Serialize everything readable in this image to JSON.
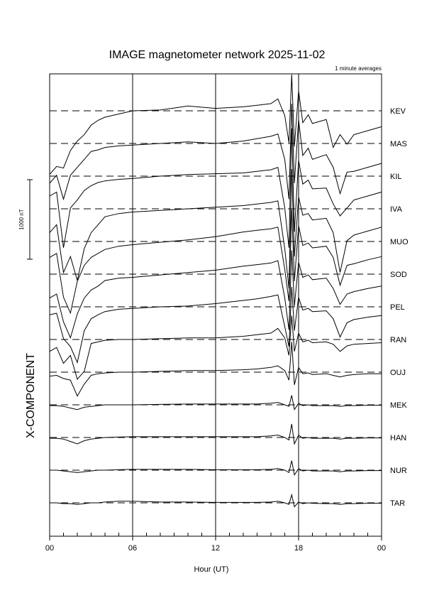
{
  "chart_data": {
    "type": "line",
    "title": "IMAGE magnetometer network 2025-11-02",
    "subtitle": "1 minute averages",
    "xlabel": "Hour (UT)",
    "component_label": "X-COMPONENT",
    "scale_bar_label": "1000 nT",
    "scale_bar_nT": 1000,
    "xlim": [
      0,
      24
    ],
    "x_ticks": [
      {
        "hour": 0,
        "label": "00"
      },
      {
        "hour": 6,
        "label": "06"
      },
      {
        "hour": 12,
        "label": "12"
      },
      {
        "hour": 18,
        "label": "18"
      },
      {
        "hour": 24,
        "label": "00"
      }
    ],
    "minor_tick_hours": [
      1,
      2,
      3,
      4,
      5,
      7,
      8,
      9,
      10,
      11,
      13,
      14,
      15,
      16,
      17,
      19,
      20,
      21,
      22,
      23
    ],
    "grid": {
      "vertical_hours": [
        6,
        12,
        18
      ],
      "baselines": "dashed"
    },
    "sample_hours": [
      0,
      0.5,
      1,
      1.5,
      2,
      2.5,
      3,
      3.5,
      4,
      5,
      6,
      8,
      10,
      12,
      14,
      15,
      16,
      16.5,
      17,
      17.3,
      17.5,
      17.7,
      18,
      18.3,
      18.7,
      19,
      20,
      20.5,
      21,
      21.5,
      22,
      23,
      24
    ],
    "series": [
      {
        "name": "KEV",
        "values": [
          -800,
          -700,
          -720,
          -500,
          -380,
          -300,
          -180,
          -120,
          -80,
          -40,
          0,
          10,
          60,
          30,
          50,
          70,
          90,
          150,
          -60,
          -400,
          700,
          -450,
          250,
          -150,
          -50,
          -160,
          -110,
          -460,
          -300,
          -420,
          -300,
          -250,
          -200
        ]
      },
      {
        "name": "MAS",
        "values": [
          -500,
          -400,
          -700,
          -400,
          -300,
          -200,
          -100,
          -80,
          -50,
          -30,
          -20,
          0,
          20,
          0,
          30,
          60,
          90,
          120,
          -200,
          -700,
          500,
          -500,
          300,
          -150,
          -60,
          -200,
          -140,
          -300,
          -630,
          -360,
          -350,
          -300,
          -250
        ]
      },
      {
        "name": "KIL",
        "values": [
          -250,
          -200,
          -900,
          -400,
          -300,
          -180,
          -120,
          -80,
          -60,
          -40,
          -30,
          0,
          20,
          30,
          40,
          60,
          80,
          110,
          -400,
          -900,
          600,
          -700,
          200,
          -100,
          -50,
          -160,
          -150,
          -350,
          -500,
          -400,
          -300,
          -250,
          -200
        ]
      },
      {
        "name": "IVA",
        "values": [
          -300,
          -200,
          -800,
          -600,
          -900,
          -500,
          -300,
          -200,
          -100,
          -60,
          -40,
          -20,
          0,
          20,
          40,
          60,
          80,
          100,
          -500,
          -1000,
          500,
          -600,
          150,
          -80,
          -60,
          -140,
          -120,
          -300,
          -800,
          -400,
          -330,
          -280,
          -230
        ]
      },
      {
        "name": "MUO",
        "values": [
          -200,
          -150,
          -700,
          -900,
          -500,
          -300,
          -200,
          -150,
          -100,
          -60,
          -40,
          -10,
          20,
          60,
          120,
          140,
          160,
          180,
          -350,
          -750,
          400,
          -500,
          200,
          -50,
          -20,
          -80,
          -60,
          -200,
          -550,
          -300,
          -280,
          -230,
          -190
        ]
      },
      {
        "name": "SOD",
        "values": [
          -300,
          -250,
          -600,
          -800,
          -500,
          -300,
          -200,
          -150,
          -80,
          -50,
          -40,
          -10,
          20,
          50,
          100,
          120,
          140,
          170,
          -300,
          -700,
          300,
          -400,
          150,
          -40,
          -10,
          -70,
          -50,
          -180,
          -380,
          -250,
          -220,
          -180,
          -150
        ]
      },
      {
        "name": "PEL",
        "values": [
          -100,
          -80,
          -400,
          -500,
          -700,
          -300,
          -150,
          -100,
          -60,
          -30,
          -20,
          0,
          10,
          40,
          80,
          100,
          130,
          150,
          -250,
          -500,
          250,
          -300,
          120,
          -40,
          -20,
          -60,
          -50,
          -150,
          -380,
          -200,
          -160,
          -130,
          -110
        ]
      },
      {
        "name": "RAN",
        "values": [
          -150,
          -100,
          -300,
          -200,
          -500,
          -400,
          -50,
          -30,
          -10,
          0,
          0,
          10,
          20,
          20,
          40,
          60,
          80,
          140,
          20,
          -200,
          300,
          -150,
          80,
          -30,
          -10,
          -40,
          -30,
          -60,
          -150,
          -80,
          -60,
          -50,
          -40
        ]
      },
      {
        "name": "OUJ",
        "values": [
          -50,
          -40,
          -80,
          -100,
          -300,
          -150,
          -40,
          -20,
          -10,
          0,
          0,
          10,
          20,
          20,
          30,
          40,
          60,
          80,
          20,
          -100,
          380,
          -160,
          60,
          -20,
          -10,
          -30,
          -20,
          -40,
          -60,
          -40,
          -30,
          -20,
          -20
        ]
      },
      {
        "name": "MEK",
        "values": [
          -10,
          -10,
          -20,
          -40,
          -60,
          -30,
          -20,
          -10,
          0,
          0,
          0,
          5,
          10,
          10,
          10,
          10,
          20,
          30,
          0,
          -20,
          120,
          -60,
          20,
          -10,
          0,
          -10,
          -10,
          -10,
          -20,
          -10,
          -10,
          -5,
          -5
        ]
      },
      {
        "name": "HAN",
        "values": [
          -10,
          -10,
          -20,
          -50,
          -80,
          -40,
          -20,
          -10,
          0,
          5,
          10,
          10,
          10,
          10,
          10,
          10,
          20,
          30,
          0,
          -30,
          170,
          -80,
          30,
          -10,
          0,
          -10,
          -10,
          -10,
          -20,
          -10,
          -10,
          -5,
          -5
        ]
      },
      {
        "name": "NUR",
        "values": [
          0,
          0,
          -10,
          -20,
          -30,
          -20,
          -10,
          0,
          0,
          5,
          10,
          10,
          10,
          5,
          5,
          5,
          10,
          20,
          0,
          -30,
          120,
          -60,
          20,
          -10,
          0,
          -10,
          -10,
          -10,
          -20,
          -10,
          -10,
          -5,
          -5
        ]
      },
      {
        "name": "TAR",
        "values": [
          0,
          0,
          -10,
          -10,
          -20,
          -10,
          0,
          0,
          10,
          20,
          20,
          10,
          10,
          5,
          5,
          5,
          10,
          20,
          0,
          -20,
          100,
          -50,
          10,
          -10,
          0,
          -5,
          -10,
          -10,
          -20,
          -10,
          -10,
          -5,
          -5
        ]
      }
    ]
  }
}
